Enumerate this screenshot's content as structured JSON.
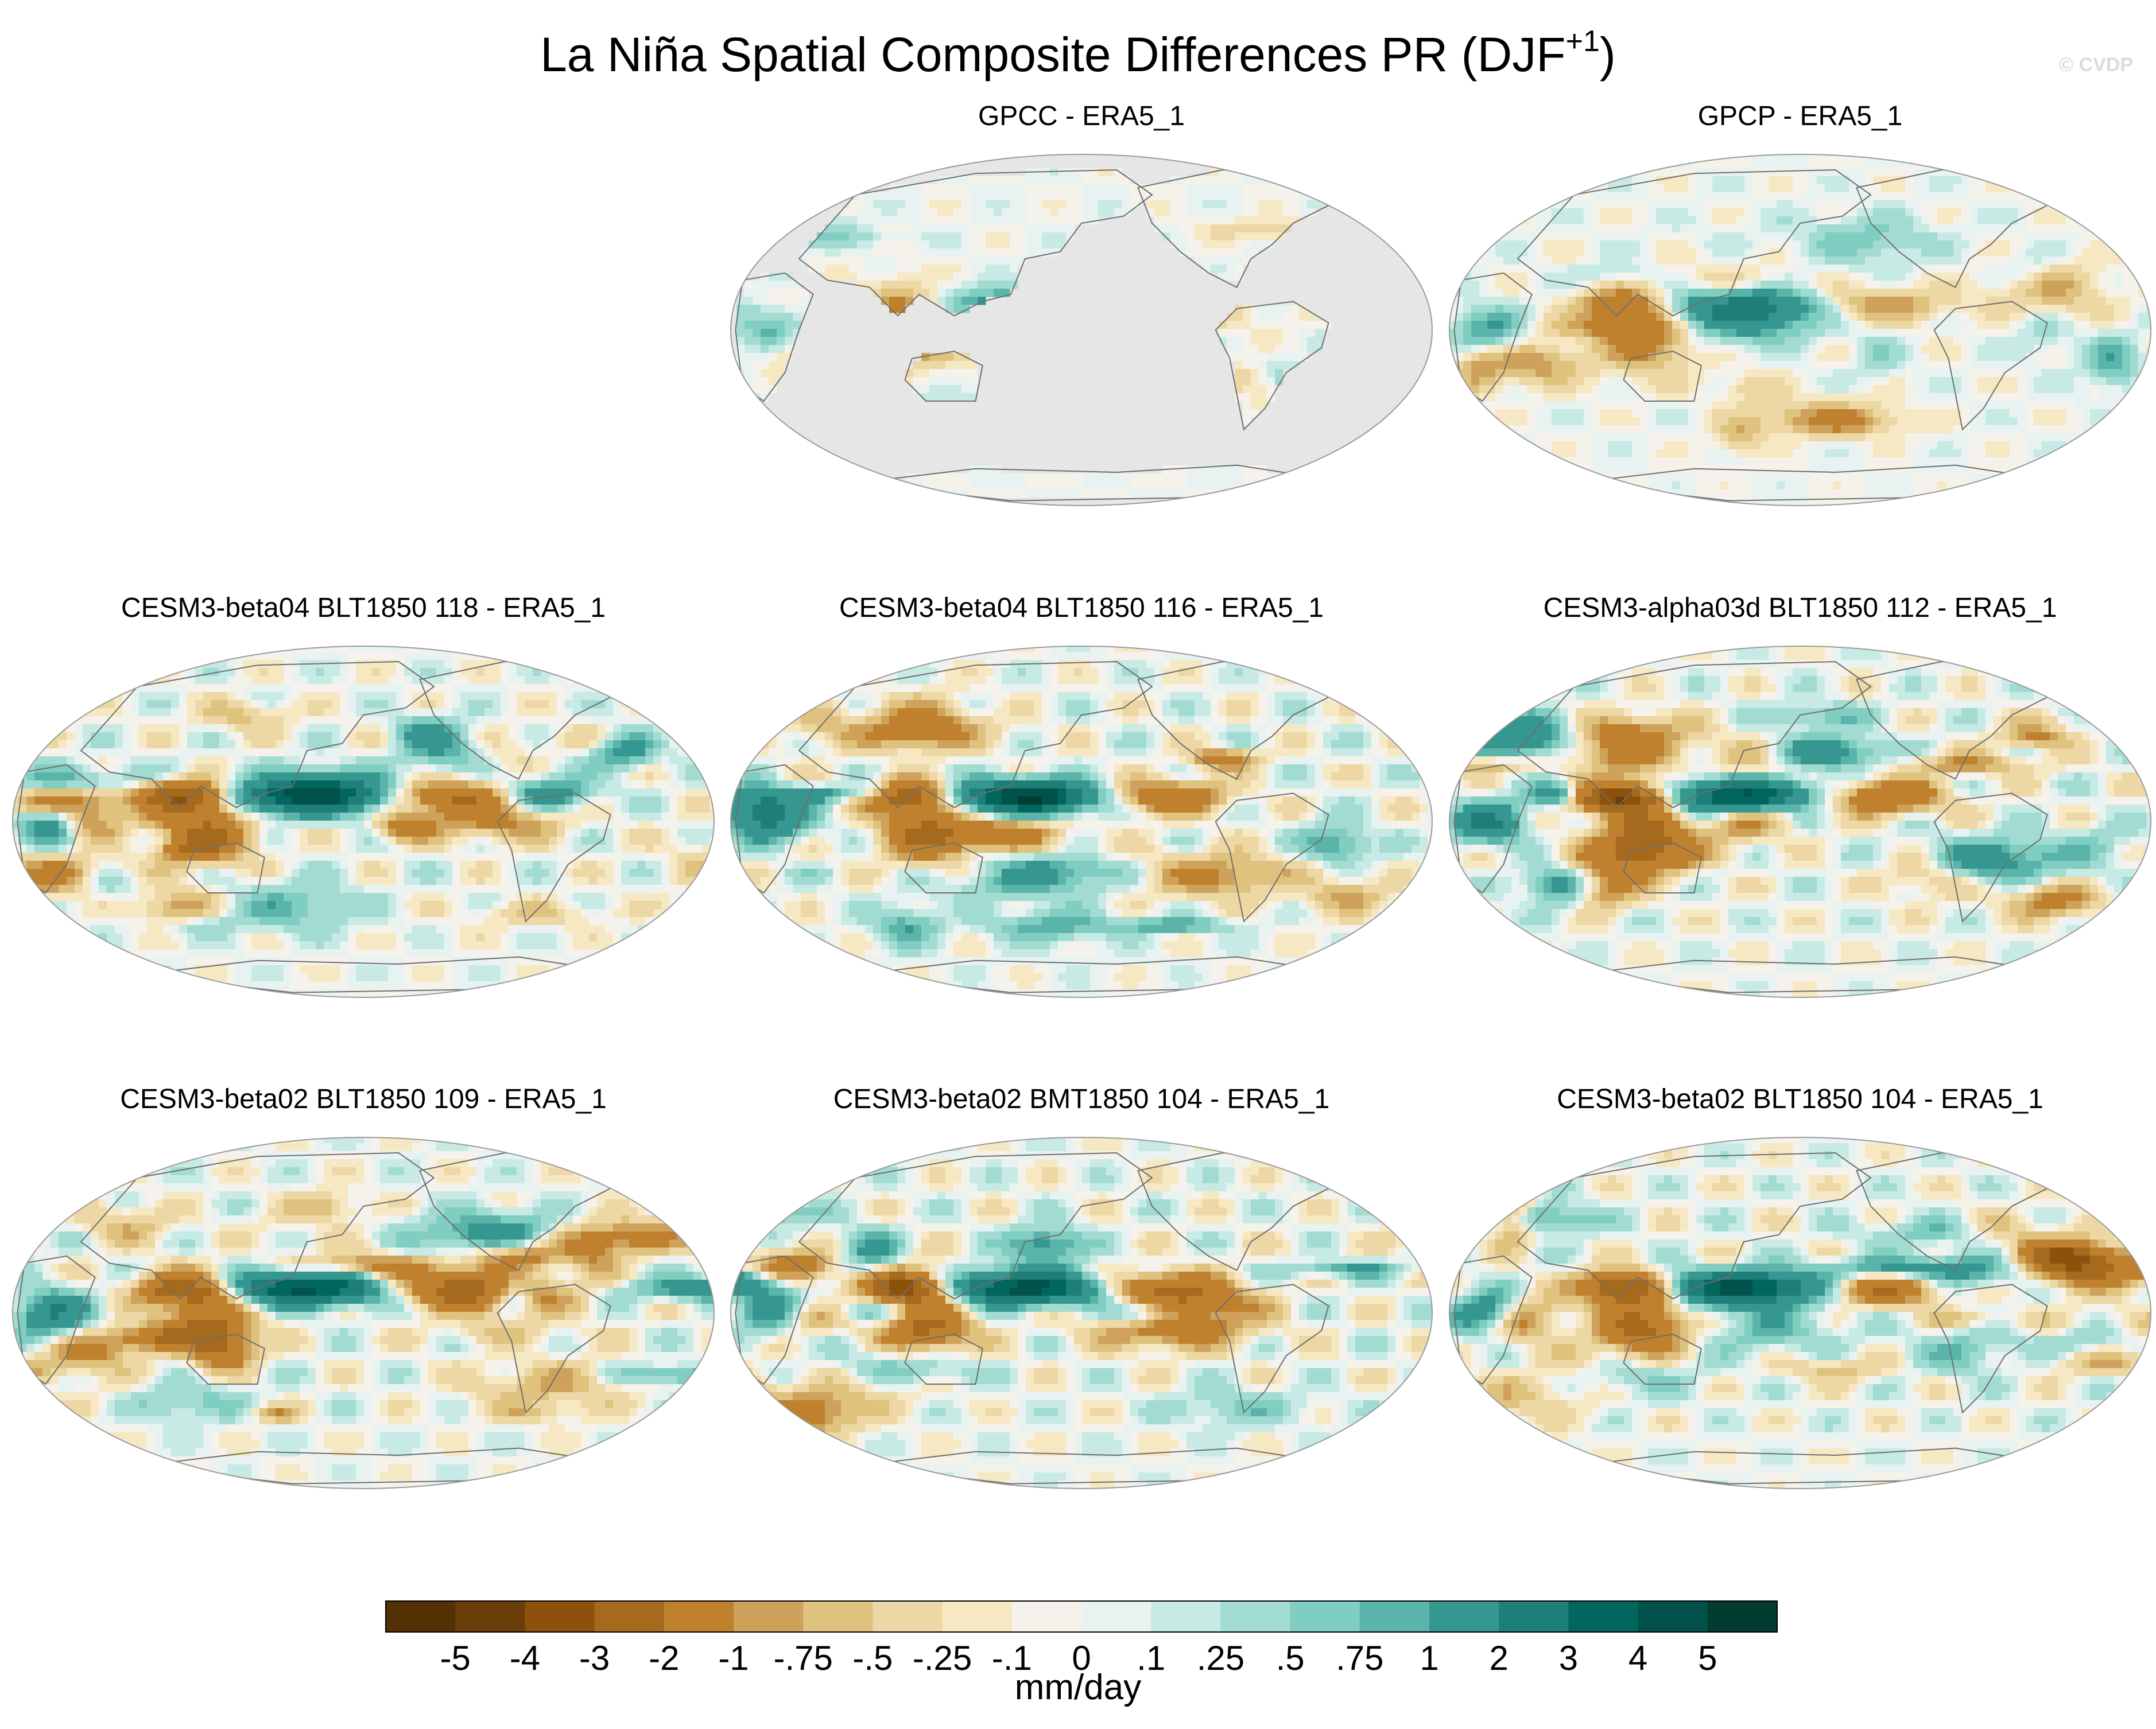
{
  "title": {
    "main": "La Niña Spatial Composite Differences PR (DJF",
    "superscript": "+1",
    "close": ")"
  },
  "copyright": "© CVDP",
  "colors": {
    "land_mask": "#e6e6e6",
    "coastline": "#6e6e6e",
    "background": "#ffffff"
  },
  "chart_data": {
    "type": "heatmap",
    "projection": "Robinson (global, Pacific-centered)",
    "variable": "PR",
    "season": "DJF+1",
    "units": "mm/day",
    "colorbar": {
      "levels": [
        "-5",
        "-4",
        "-3",
        "-2",
        "-1",
        "-.75",
        "-.5",
        "-.25",
        "-.1",
        "0",
        ".1",
        ".25",
        ".5",
        ".75",
        "1",
        "2",
        "3",
        "4",
        "5"
      ],
      "colors": [
        "#543005",
        "#6b3d09",
        "#8c510a",
        "#a66a1f",
        "#bf812d",
        "#cfa25b",
        "#dfc27d",
        "#ecd7a5",
        "#f6e8c3",
        "#f5f2eb",
        "#e8f3f1",
        "#c7eae5",
        "#a2dbd2",
        "#80cdc1",
        "#5ab4a9",
        "#35978f",
        "#1d7f77",
        "#01665e",
        "#01524a",
        "#003c30"
      ]
    },
    "panels": [
      {
        "title": "GPCC - ERA5_1",
        "land_only": true,
        "strength": 0.7,
        "seed": 11
      },
      {
        "title": "GPCP - ERA5_1",
        "land_only": false,
        "strength": 0.95,
        "seed": 23
      },
      {
        "title": "CESM3-beta04 BLT1850 118 - ERA5_1",
        "land_only": false,
        "strength": 1.6,
        "seed": 37
      },
      {
        "title": "CESM3-beta04 BLT1850 116 - ERA5_1",
        "land_only": false,
        "strength": 1.6,
        "seed": 41
      },
      {
        "title": "CESM3-alpha03d BLT1850 112 - ERA5_1",
        "land_only": false,
        "strength": 1.7,
        "seed": 53
      },
      {
        "title": "CESM3-beta02 BLT1850 109 - ERA5_1",
        "land_only": false,
        "strength": 1.65,
        "seed": 67
      },
      {
        "title": "CESM3-beta02 BMT1850 104 - ERA5_1",
        "land_only": false,
        "strength": 1.7,
        "seed": 71
      },
      {
        "title": "CESM3-beta02 BLT1850 104 - ERA5_1",
        "land_only": false,
        "strength": 1.7,
        "seed": 83
      }
    ]
  }
}
